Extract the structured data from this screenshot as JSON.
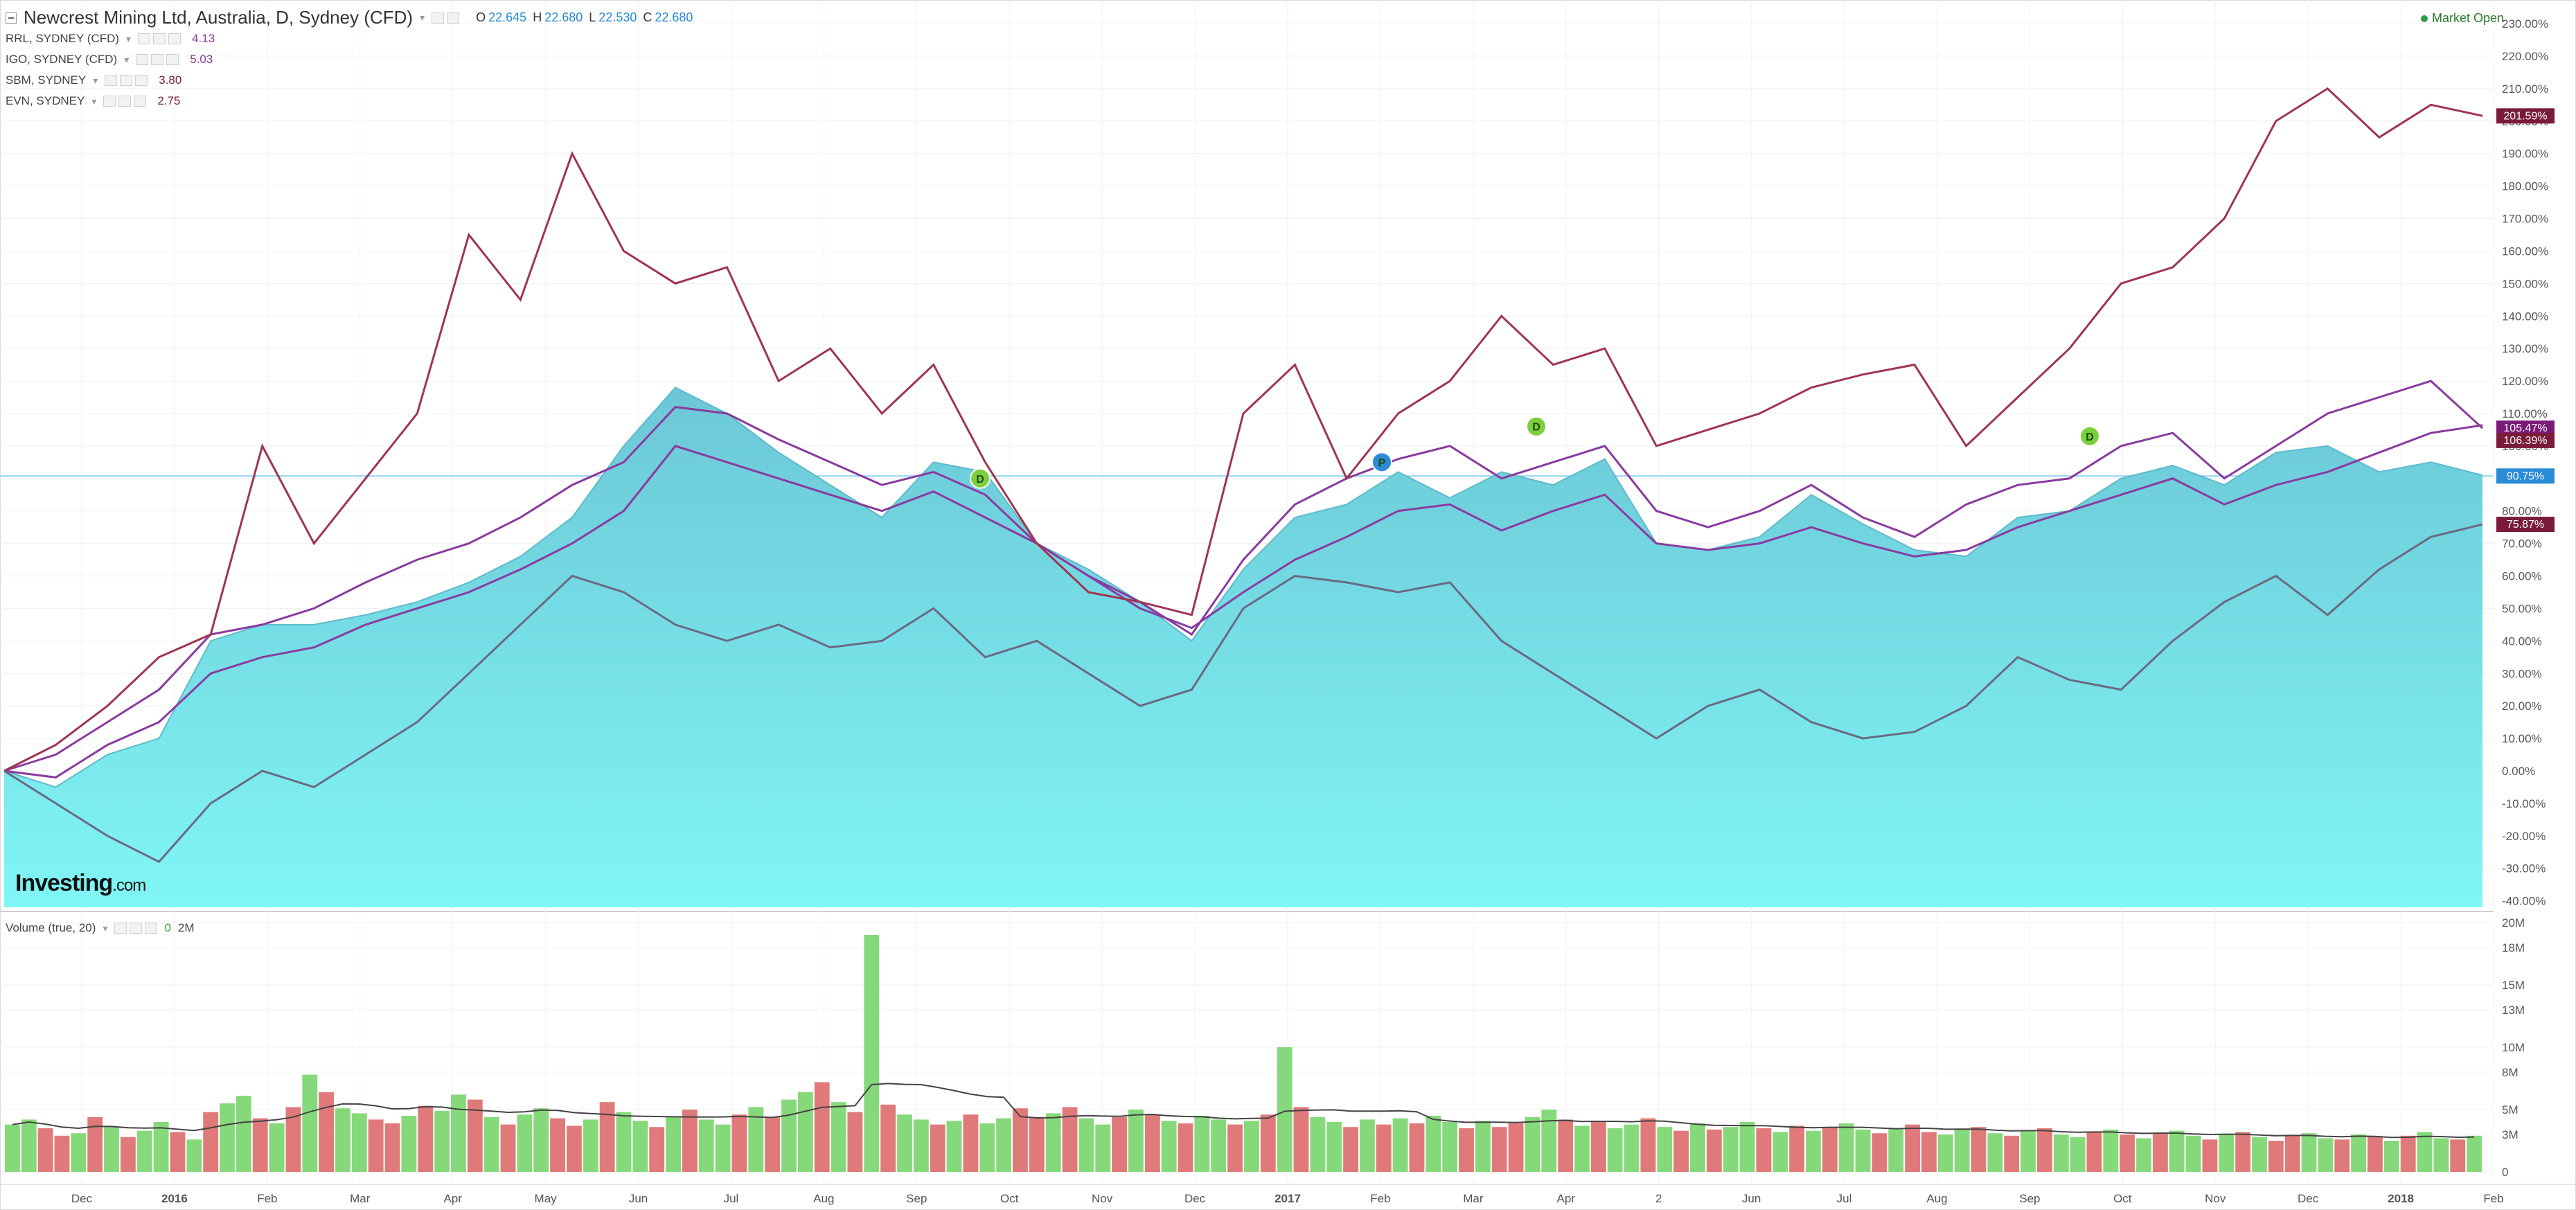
{
  "header": {
    "title": "Newcrest Mining Ltd, Australia, D, Sydney (CFD)",
    "ohlc": {
      "o_label": "O",
      "o": "22.645",
      "h_label": "H",
      "h": "22.680",
      "l_label": "L",
      "l": "22.530",
      "c_label": "C",
      "c": "22.680"
    },
    "market_status": "Market Open"
  },
  "comparisons": [
    {
      "symbol": "RRL, SYDNEY (CFD)",
      "value": "4.13",
      "color": "#8a3aa0"
    },
    {
      "symbol": "IGO, SYDNEY (CFD)",
      "value": "5.03",
      "color": "#8a3aa0"
    },
    {
      "symbol": "SBM, SYDNEY",
      "value": "3.80",
      "color": "#7a1b3a"
    },
    {
      "symbol": "EVN, SYDNEY",
      "value": "2.75",
      "color": "#7a1b3a"
    }
  ],
  "volume_legend": {
    "label": "Volume (true, 20)",
    "v1": "0",
    "v2": "2M"
  },
  "logo": {
    "main": "Investing",
    "suffix": ".com"
  },
  "chart_data": [
    {
      "type": "area",
      "y_axis_ticks": [
        "230.00%",
        "220.00%",
        "210.00%",
        "200.00%",
        "190.00%",
        "180.00%",
        "170.00%",
        "160.00%",
        "150.00%",
        "140.00%",
        "130.00%",
        "120.00%",
        "110.00%",
        "100.00%",
        "90.00%",
        "80.00%",
        "70.00%",
        "60.00%",
        "50.00%",
        "40.00%",
        "30.00%",
        "20.00%",
        "10.00%",
        "0.00%",
        "-10.00%",
        "-20.00%",
        "-30.00%",
        "-40.00%"
      ],
      "ylim": [
        -42,
        233
      ],
      "x_axis_ticks": [
        "Dec",
        "2016",
        "Feb",
        "Mar",
        "Apr",
        "May",
        "Jun",
        "Jul",
        "Aug",
        "Sep",
        "Oct",
        "Nov",
        "Dec",
        "2017",
        "Feb",
        "Mar",
        "Apr",
        "2",
        "Jun",
        "Jul",
        "Aug",
        "Sep",
        "Oct",
        "Nov",
        "Dec",
        "2018",
        "Feb"
      ],
      "grid": true,
      "series": [
        {
          "name": "Newcrest Mining Ltd",
          "style": "area",
          "color": "#7ee8f0",
          "values": [
            0,
            -5,
            5,
            10,
            40,
            45,
            45,
            48,
            52,
            58,
            66,
            78,
            100,
            118,
            110,
            98,
            88,
            78,
            95,
            92,
            70,
            62,
            52,
            40,
            62,
            78,
            82,
            92,
            84,
            92,
            88,
            96,
            70,
            68,
            72,
            85,
            76,
            68,
            66,
            78,
            80,
            90,
            94,
            88,
            98,
            100,
            92,
            95,
            91
          ]
        },
        {
          "name": "RRL",
          "style": "line",
          "color": "#8a3aa0",
          "values": [
            0,
            5,
            15,
            25,
            42,
            45,
            50,
            58,
            65,
            70,
            78,
            88,
            95,
            112,
            110,
            102,
            95,
            88,
            92,
            85,
            70,
            60,
            52,
            42,
            65,
            82,
            90,
            96,
            100,
            90,
            95,
            100,
            80,
            75,
            80,
            88,
            78,
            72,
            82,
            88,
            90,
            100,
            104,
            90,
            100,
            110,
            115,
            120,
            105.47
          ]
        },
        {
          "name": "IGO",
          "style": "line",
          "color": "#8a3aa0",
          "values": [
            0,
            -2,
            8,
            15,
            30,
            35,
            38,
            45,
            50,
            55,
            62,
            70,
            80,
            100,
            95,
            90,
            85,
            80,
            86,
            78,
            70,
            60,
            50,
            44,
            55,
            65,
            72,
            80,
            82,
            74,
            80,
            85,
            70,
            68,
            70,
            75,
            70,
            66,
            68,
            75,
            80,
            85,
            90,
            82,
            88,
            92,
            98,
            104,
            106.39
          ]
        },
        {
          "name": "SBM",
          "style": "line",
          "color": "#a03550",
          "values": [
            0,
            8,
            20,
            35,
            42,
            100,
            70,
            90,
            110,
            165,
            145,
            190,
            160,
            150,
            155,
            120,
            130,
            110,
            125,
            95,
            70,
            55,
            52,
            48,
            110,
            125,
            90,
            110,
            120,
            140,
            125,
            130,
            100,
            105,
            110,
            118,
            122,
            125,
            100,
            115,
            130,
            150,
            155,
            170,
            200,
            210,
            195,
            205,
            201.59
          ]
        },
        {
          "name": "EVN",
          "style": "line",
          "color": "#6a6a80",
          "values": [
            0,
            -10,
            -20,
            -28,
            -10,
            0,
            -5,
            5,
            15,
            30,
            45,
            60,
            55,
            45,
            40,
            45,
            38,
            40,
            50,
            35,
            40,
            30,
            20,
            25,
            50,
            60,
            58,
            55,
            58,
            40,
            30,
            20,
            10,
            20,
            25,
            15,
            10,
            12,
            20,
            35,
            28,
            25,
            40,
            52,
            60,
            48,
            62,
            72,
            75.87
          ]
        }
      ],
      "price_tags": [
        "201.59%",
        "105.47%",
        "106.39%",
        "90.75%",
        "75.87%"
      ],
      "event_markers": [
        {
          "label": "D",
          "color": "#7ccf3a"
        },
        {
          "label": "P",
          "color": "#2a8bd6"
        },
        {
          "label": "D",
          "color": "#7ccf3a"
        },
        {
          "label": "D",
          "color": "#7ccf3a"
        }
      ]
    },
    {
      "type": "bar",
      "title": "Volume (true, 20)",
      "y_axis_ticks": [
        "20M",
        "18M",
        "15M",
        "13M",
        "10M",
        "8M",
        "5M",
        "3M",
        "0"
      ],
      "ylim": [
        0,
        20
      ],
      "unit": "M",
      "up_color": "#86d97a",
      "down_color": "#e07a7a",
      "values": [
        3.8,
        4.2,
        3.5,
        2.9,
        3.1,
        4.4,
        3.6,
        2.8,
        3.3,
        4.0,
        3.2,
        2.6,
        4.8,
        5.5,
        6.1,
        4.3,
        3.9,
        5.2,
        7.8,
        6.4,
        5.1,
        4.7,
        4.2,
        3.9,
        4.5,
        5.3,
        4.9,
        6.2,
        5.8,
        4.4,
        3.8,
        4.6,
        5.1,
        4.3,
        3.7,
        4.2,
        5.6,
        4.8,
        4.1,
        3.6,
        4.4,
        5.0,
        4.2,
        3.8,
        4.6,
        5.2,
        4.4,
        5.8,
        6.4,
        7.2,
        5.6,
        4.8,
        19.0,
        5.4,
        4.6,
        4.2,
        3.8,
        4.1,
        4.6,
        3.9,
        4.3,
        5.1,
        4.4,
        4.7,
        5.2,
        4.3,
        3.8,
        4.4,
        5.0,
        4.6,
        4.1,
        3.9,
        4.5,
        4.2,
        3.8,
        4.1,
        4.6,
        10.0,
        5.2,
        4.4,
        4.0,
        3.6,
        4.2,
        3.8,
        4.3,
        3.9,
        4.5,
        4.0,
        3.5,
        4.1,
        3.6,
        3.9,
        4.4,
        5.0,
        4.2,
        3.7,
        4.1,
        3.5,
        3.8,
        4.3,
        3.6,
        3.3,
        3.9,
        3.4,
        3.6,
        4.0,
        3.5,
        3.2,
        3.7,
        3.3,
        3.6,
        3.9,
        3.4,
        3.1,
        3.5,
        3.8,
        3.2,
        3.0,
        3.4,
        3.6,
        3.1,
        2.9,
        3.3,
        3.5,
        3.0,
        2.8,
        3.2,
        3.4,
        3.0,
        2.7,
        3.1,
        3.3,
        2.9,
        2.6,
        3.0,
        3.2,
        2.8,
        2.5,
        2.9,
        3.1,
        2.7,
        2.6,
        3.0,
        2.8,
        2.5,
        2.9,
        3.2,
        2.7,
        2.6,
        2.9
      ],
      "up_flags": [
        1,
        1,
        0,
        0,
        1,
        0,
        1,
        0,
        1,
        1,
        0,
        1,
        0,
        1,
        1,
        0,
        1,
        0,
        1,
        0,
        1,
        1,
        0,
        0,
        1,
        0,
        1,
        1,
        0,
        1,
        0,
        1,
        1,
        0,
        0,
        1,
        0,
        1,
        1,
        0,
        1,
        0,
        1,
        1,
        0,
        1,
        0,
        1,
        1,
        0,
        1,
        0,
        1,
        0,
        1,
        1,
        0,
        1,
        0,
        1,
        1,
        0,
        0,
        1,
        0,
        1,
        1,
        0,
        1,
        0,
        1,
        0,
        1,
        1,
        0,
        1,
        0,
        1,
        0,
        1,
        1,
        0,
        1,
        0,
        1,
        0,
        1,
        1,
        0,
        1,
        0,
        0,
        1,
        1,
        0,
        1,
        0,
        1,
        1,
        0,
        1,
        0,
        1,
        0,
        1,
        1,
        0,
        1,
        0,
        1,
        0,
        1,
        1,
        0,
        1,
        0,
        0,
        1,
        1,
        0,
        1,
        0,
        1,
        0,
        1,
        1,
        0,
        1,
        0,
        1,
        0,
        1,
        1,
        0,
        1,
        0,
        1,
        0,
        0,
        1,
        1,
        0,
        1,
        0,
        1,
        0,
        1,
        1,
        0,
        1
      ],
      "moving_average_color": "#444444"
    }
  ]
}
